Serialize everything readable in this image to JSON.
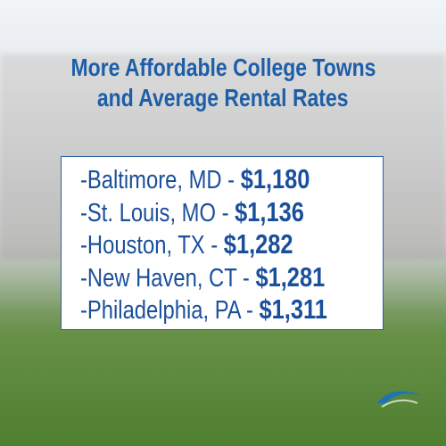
{
  "title": {
    "lines": [
      "More Affordable College Towns",
      "and Average Rental Rates"
    ]
  },
  "items": [
    {
      "label": "-Baltimore, MD -",
      "price": "$1,180"
    },
    {
      "label": "-St. Louis, MO -",
      "price": "$1,136"
    },
    {
      "label": "-Houston, TX -",
      "price": "$1,282"
    },
    {
      "label": "-New Haven, CT -",
      "price": "$1,281"
    },
    {
      "label": "-Philadelphia, PA -",
      "price": "$1,311"
    }
  ]
}
